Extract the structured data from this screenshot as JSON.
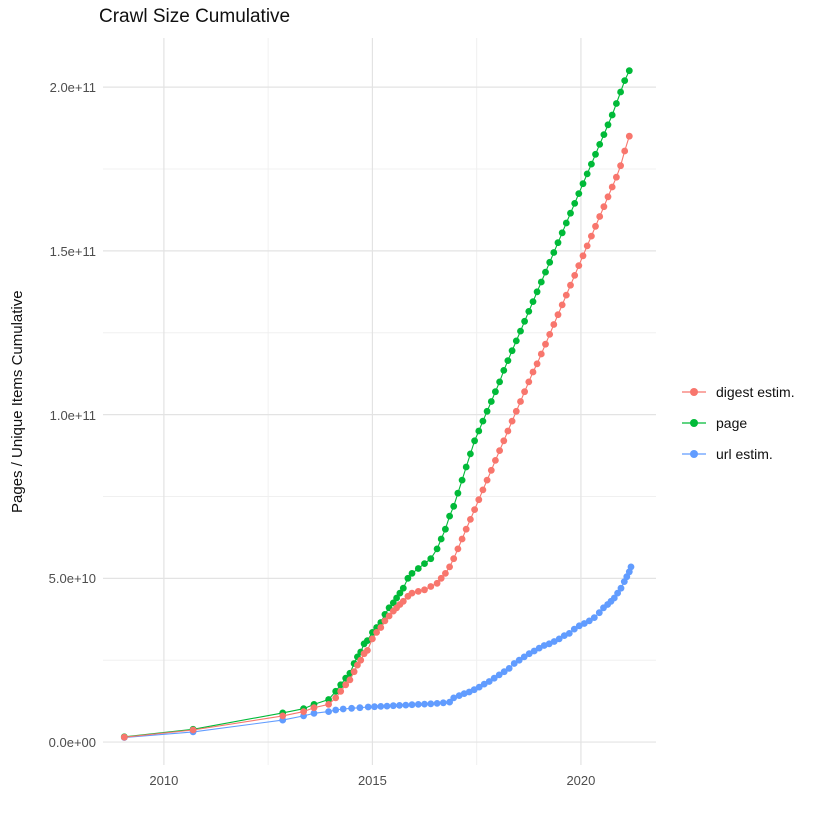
{
  "chart_data": {
    "type": "scatter",
    "title": "Crawl Size Cumulative",
    "xlabel": "",
    "ylabel": "Pages / Unique Items Cumulative",
    "value_unit": "billions (1e9)",
    "grid": true,
    "legend_position": "right",
    "x_axis": {
      "range": [
        2008.54,
        2021.8
      ],
      "ticks": [
        {
          "v": 2010,
          "label": "2010"
        },
        {
          "v": 2015,
          "label": "2015"
        },
        {
          "v": 2020,
          "label": "2020"
        }
      ],
      "minor": [
        2012.5,
        2017.5
      ]
    },
    "y_axis": {
      "range": [
        -7,
        215
      ],
      "ticks": [
        {
          "v": 0,
          "label": "0.0e+00"
        },
        {
          "v": 50,
          "label": "5.0e+10"
        },
        {
          "v": 100,
          "label": "1.0e+11"
        },
        {
          "v": 150,
          "label": "1.5e+11"
        },
        {
          "v": 200,
          "label": "2.0e+11"
        }
      ],
      "minor": [
        25,
        75,
        125,
        175
      ]
    },
    "style": {
      "grid_major": "#e3e3e3",
      "grid_minor": "#f0f0f0",
      "tick_text": "#4d4d4d",
      "title_text": "#101010",
      "background": "#ffffff"
    },
    "series": [
      {
        "name": "digest estim.",
        "color": "#F8766D",
        "points": [
          [
            2009.05,
            1.5
          ],
          [
            2010.7,
            3.7
          ],
          [
            2012.85,
            8.0
          ],
          [
            2013.35,
            9.3
          ],
          [
            2013.6,
            10.5
          ],
          [
            2013.95,
            11.5
          ],
          [
            2014.12,
            13.5
          ],
          [
            2014.24,
            15.5
          ],
          [
            2014.36,
            17.5
          ],
          [
            2014.46,
            19.0
          ],
          [
            2014.56,
            21.5
          ],
          [
            2014.64,
            23.5
          ],
          [
            2014.72,
            25.0
          ],
          [
            2014.8,
            27.0
          ],
          [
            2014.88,
            28.0
          ],
          [
            2015.0,
            31.5
          ],
          [
            2015.1,
            33.5
          ],
          [
            2015.2,
            35.0
          ],
          [
            2015.3,
            37.0
          ],
          [
            2015.4,
            38.5
          ],
          [
            2015.5,
            40.0
          ],
          [
            2015.58,
            41.0
          ],
          [
            2015.66,
            42.0
          ],
          [
            2015.74,
            43.0
          ],
          [
            2015.85,
            44.5
          ],
          [
            2015.95,
            45.5
          ],
          [
            2016.1,
            46.0
          ],
          [
            2016.25,
            46.5
          ],
          [
            2016.4,
            47.5
          ],
          [
            2016.55,
            48.5
          ],
          [
            2016.65,
            50.0
          ],
          [
            2016.75,
            51.5
          ],
          [
            2016.85,
            53.5
          ],
          [
            2016.95,
            56.0
          ],
          [
            2017.05,
            59.0
          ],
          [
            2017.15,
            62.0
          ],
          [
            2017.25,
            65.0
          ],
          [
            2017.35,
            68.0
          ],
          [
            2017.45,
            71.0
          ],
          [
            2017.55,
            74.0
          ],
          [
            2017.65,
            77.0
          ],
          [
            2017.75,
            80.0
          ],
          [
            2017.85,
            83.0
          ],
          [
            2017.95,
            86.0
          ],
          [
            2018.05,
            89.0
          ],
          [
            2018.15,
            92.0
          ],
          [
            2018.25,
            95.0
          ],
          [
            2018.35,
            98.0
          ],
          [
            2018.45,
            101.0
          ],
          [
            2018.55,
            104.0
          ],
          [
            2018.65,
            107.0
          ],
          [
            2018.75,
            110.0
          ],
          [
            2018.85,
            113.0
          ],
          [
            2018.95,
            115.5
          ],
          [
            2019.05,
            118.5
          ],
          [
            2019.15,
            121.5
          ],
          [
            2019.25,
            124.5
          ],
          [
            2019.35,
            127.5
          ],
          [
            2019.45,
            130.5
          ],
          [
            2019.55,
            133.5
          ],
          [
            2019.65,
            136.5
          ],
          [
            2019.75,
            139.5
          ],
          [
            2019.85,
            142.5
          ],
          [
            2019.95,
            145.5
          ],
          [
            2020.05,
            148.5
          ],
          [
            2020.15,
            151.5
          ],
          [
            2020.25,
            154.5
          ],
          [
            2020.35,
            157.5
          ],
          [
            2020.45,
            160.5
          ],
          [
            2020.55,
            163.5
          ],
          [
            2020.65,
            166.5
          ],
          [
            2020.75,
            169.5
          ],
          [
            2020.85,
            172.5
          ],
          [
            2020.95,
            176.0
          ],
          [
            2021.05,
            180.5
          ],
          [
            2021.16,
            185.0
          ]
        ]
      },
      {
        "name": "page",
        "color": "#00BA38",
        "points": [
          [
            2009.05,
            1.6
          ],
          [
            2010.7,
            3.9
          ],
          [
            2012.85,
            8.9
          ],
          [
            2013.35,
            10.2
          ],
          [
            2013.6,
            11.5
          ],
          [
            2013.95,
            13.0
          ],
          [
            2014.12,
            15.5
          ],
          [
            2014.24,
            17.5
          ],
          [
            2014.36,
            19.5
          ],
          [
            2014.46,
            21.0
          ],
          [
            2014.56,
            24.0
          ],
          [
            2014.64,
            26.0
          ],
          [
            2014.72,
            27.5
          ],
          [
            2014.8,
            30.0
          ],
          [
            2014.88,
            31.0
          ],
          [
            2015.0,
            33.5
          ],
          [
            2015.1,
            35.0
          ],
          [
            2015.2,
            36.5
          ],
          [
            2015.3,
            39.0
          ],
          [
            2015.4,
            41.0
          ],
          [
            2015.5,
            42.5
          ],
          [
            2015.58,
            44.0
          ],
          [
            2015.66,
            45.5
          ],
          [
            2015.74,
            47.0
          ],
          [
            2015.85,
            50.0
          ],
          [
            2015.95,
            51.5
          ],
          [
            2016.1,
            53.0
          ],
          [
            2016.25,
            54.5
          ],
          [
            2016.4,
            56.0
          ],
          [
            2016.55,
            59.0
          ],
          [
            2016.65,
            62.0
          ],
          [
            2016.75,
            65.0
          ],
          [
            2016.85,
            69.0
          ],
          [
            2016.95,
            72.0
          ],
          [
            2017.05,
            76.0
          ],
          [
            2017.15,
            80.0
          ],
          [
            2017.25,
            84.0
          ],
          [
            2017.35,
            88.0
          ],
          [
            2017.45,
            92.0
          ],
          [
            2017.55,
            95.0
          ],
          [
            2017.65,
            98.0
          ],
          [
            2017.75,
            101.0
          ],
          [
            2017.85,
            104.0
          ],
          [
            2017.95,
            107.0
          ],
          [
            2018.05,
            110.0
          ],
          [
            2018.15,
            113.5
          ],
          [
            2018.25,
            116.5
          ],
          [
            2018.35,
            119.5
          ],
          [
            2018.45,
            122.5
          ],
          [
            2018.55,
            125.5
          ],
          [
            2018.65,
            128.5
          ],
          [
            2018.75,
            131.5
          ],
          [
            2018.85,
            134.5
          ],
          [
            2018.95,
            137.5
          ],
          [
            2019.05,
            140.5
          ],
          [
            2019.15,
            143.5
          ],
          [
            2019.25,
            146.5
          ],
          [
            2019.35,
            149.5
          ],
          [
            2019.45,
            152.5
          ],
          [
            2019.55,
            155.5
          ],
          [
            2019.65,
            158.5
          ],
          [
            2019.75,
            161.5
          ],
          [
            2019.85,
            164.5
          ],
          [
            2019.95,
            167.5
          ],
          [
            2020.05,
            170.5
          ],
          [
            2020.15,
            173.5
          ],
          [
            2020.25,
            176.5
          ],
          [
            2020.35,
            179.5
          ],
          [
            2020.45,
            182.5
          ],
          [
            2020.55,
            185.5
          ],
          [
            2020.65,
            188.5
          ],
          [
            2020.75,
            191.5
          ],
          [
            2020.85,
            195.0
          ],
          [
            2020.95,
            198.5
          ],
          [
            2021.05,
            202.0
          ],
          [
            2021.16,
            205.0
          ]
        ]
      },
      {
        "name": "url estim.",
        "color": "#619CFF",
        "points": [
          [
            2009.05,
            1.4
          ],
          [
            2010.7,
            3.1
          ],
          [
            2012.85,
            6.7
          ],
          [
            2013.35,
            8.0
          ],
          [
            2013.6,
            8.8
          ],
          [
            2013.95,
            9.3
          ],
          [
            2014.12,
            9.8
          ],
          [
            2014.3,
            10.1
          ],
          [
            2014.5,
            10.3
          ],
          [
            2014.7,
            10.5
          ],
          [
            2014.9,
            10.7
          ],
          [
            2015.05,
            10.8
          ],
          [
            2015.2,
            10.9
          ],
          [
            2015.35,
            11.0
          ],
          [
            2015.5,
            11.1
          ],
          [
            2015.65,
            11.2
          ],
          [
            2015.8,
            11.3
          ],
          [
            2015.95,
            11.4
          ],
          [
            2016.1,
            11.5
          ],
          [
            2016.25,
            11.6
          ],
          [
            2016.4,
            11.7
          ],
          [
            2016.55,
            11.8
          ],
          [
            2016.7,
            12.0
          ],
          [
            2016.85,
            12.2
          ],
          [
            2016.95,
            13.5
          ],
          [
            2017.08,
            14.2
          ],
          [
            2017.2,
            14.8
          ],
          [
            2017.32,
            15.3
          ],
          [
            2017.44,
            16.0
          ],
          [
            2017.56,
            16.8
          ],
          [
            2017.68,
            17.7
          ],
          [
            2017.8,
            18.5
          ],
          [
            2017.92,
            19.5
          ],
          [
            2018.04,
            20.5
          ],
          [
            2018.16,
            21.5
          ],
          [
            2018.28,
            22.5
          ],
          [
            2018.4,
            24.0
          ],
          [
            2018.52,
            25.0
          ],
          [
            2018.64,
            26.0
          ],
          [
            2018.76,
            27.0
          ],
          [
            2018.88,
            27.8
          ],
          [
            2019.0,
            28.7
          ],
          [
            2019.12,
            29.5
          ],
          [
            2019.24,
            30.0
          ],
          [
            2019.36,
            30.7
          ],
          [
            2019.48,
            31.5
          ],
          [
            2019.6,
            32.5
          ],
          [
            2019.72,
            33.2
          ],
          [
            2019.84,
            34.5
          ],
          [
            2019.96,
            35.5
          ],
          [
            2020.08,
            36.2
          ],
          [
            2020.2,
            37.0
          ],
          [
            2020.32,
            38.0
          ],
          [
            2020.44,
            39.5
          ],
          [
            2020.54,
            41.0
          ],
          [
            2020.64,
            42.0
          ],
          [
            2020.72,
            43.0
          ],
          [
            2020.8,
            44.0
          ],
          [
            2020.88,
            45.5
          ],
          [
            2020.96,
            47.0
          ],
          [
            2021.04,
            49.0
          ],
          [
            2021.1,
            50.5
          ],
          [
            2021.16,
            52.0
          ],
          [
            2021.2,
            53.5
          ]
        ]
      }
    ]
  }
}
